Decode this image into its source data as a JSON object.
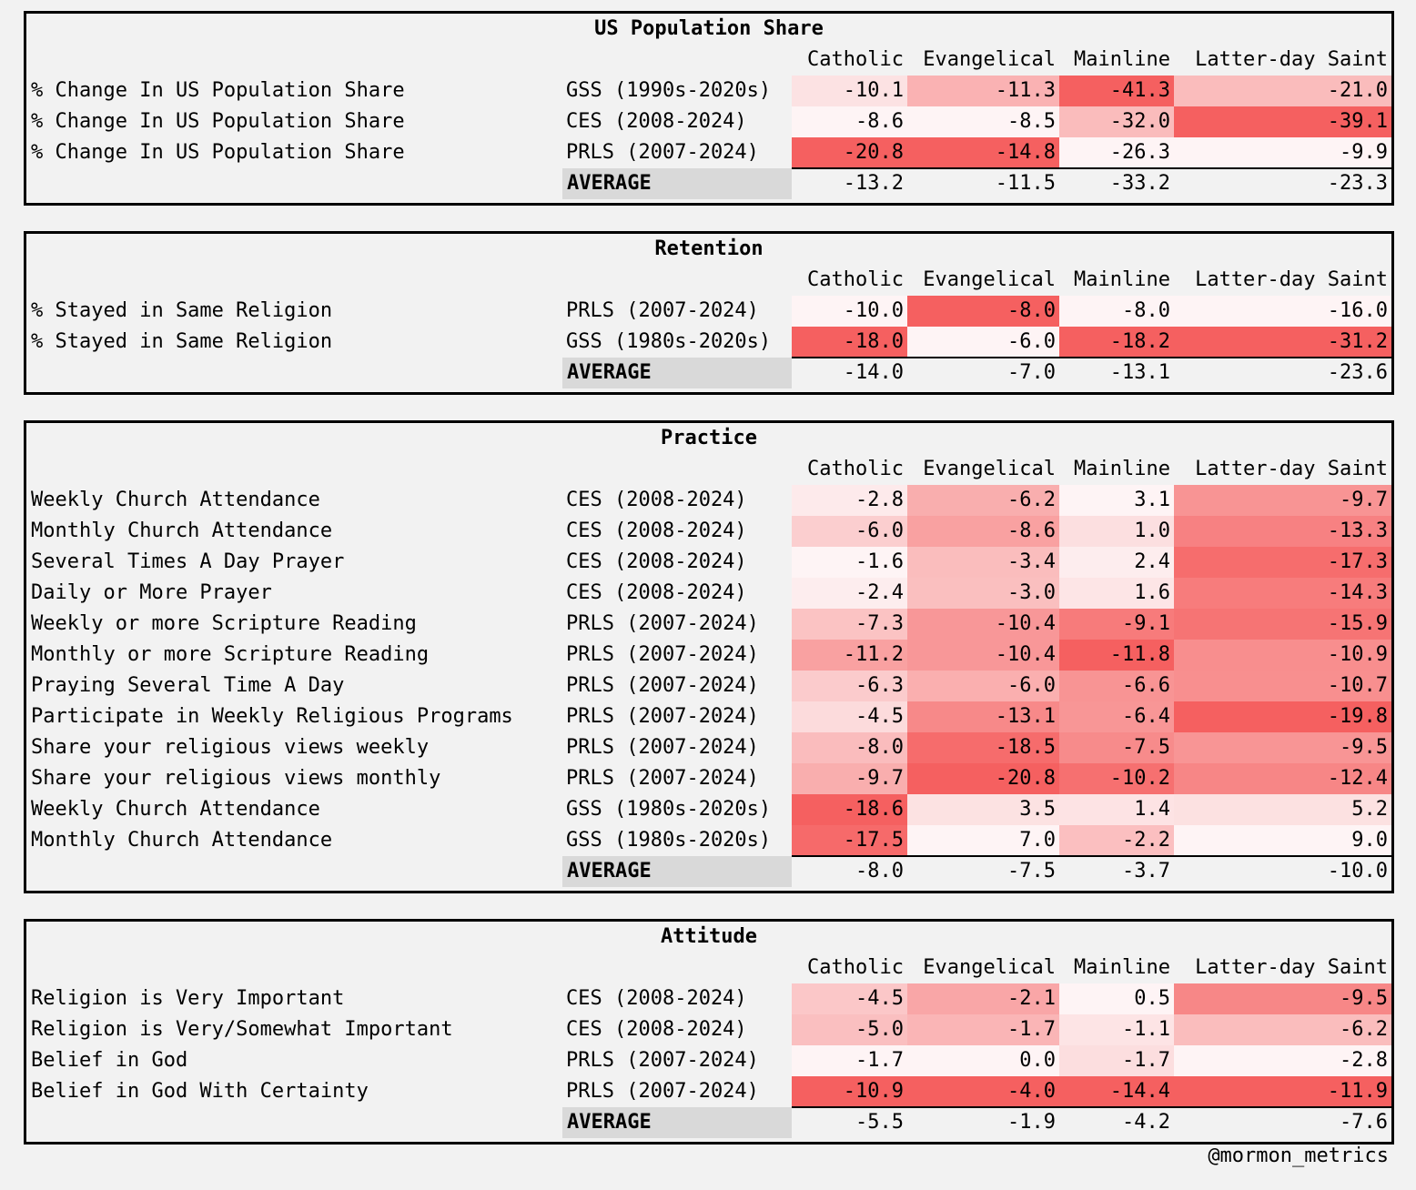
{
  "chart_data": [
    {
      "type": "table",
      "title": "US Population Share",
      "columns": [
        "Catholic",
        "Evangelical",
        "Mainline",
        "Latter-day Saint"
      ],
      "rows": [
        {
          "label": "% Change In US Population Share",
          "source": "GSS (1990s-2020s)",
          "values": [
            "-10.1",
            "-11.3",
            "-41.3",
            "-21.0"
          ]
        },
        {
          "label": "% Change In US Population Share",
          "source": "CES (2008-2024)",
          "values": [
            "-8.6",
            "-8.5",
            "-32.0",
            "-39.1"
          ]
        },
        {
          "label": "% Change In US Population Share",
          "source": "PRLS (2007-2024)",
          "values": [
            "-20.8",
            "-14.8",
            "-26.3",
            "-9.9"
          ]
        }
      ],
      "average": {
        "label": "AVERAGE",
        "values": [
          "-13.2",
          "-11.5",
          "-33.2",
          "-23.3"
        ]
      }
    },
    {
      "type": "table",
      "title": "Retention",
      "columns": [
        "Catholic",
        "Evangelical",
        "Mainline",
        "Latter-day Saint"
      ],
      "rows": [
        {
          "label": "% Stayed in Same Religion",
          "source": "PRLS (2007-2024)",
          "values": [
            "-10.0",
            "-8.0",
            "-8.0",
            "-16.0"
          ]
        },
        {
          "label": "% Stayed in Same Religion",
          "source": "GSS (1980s-2020s)",
          "values": [
            "-18.0",
            "-6.0",
            "-18.2",
            "-31.2"
          ]
        }
      ],
      "average": {
        "label": "AVERAGE",
        "values": [
          "-14.0",
          "-7.0",
          "-13.1",
          "-23.6"
        ]
      }
    },
    {
      "type": "table",
      "title": "Practice",
      "columns": [
        "Catholic",
        "Evangelical",
        "Mainline",
        "Latter-day Saint"
      ],
      "rows": [
        {
          "label": "Weekly Church Attendance",
          "source": "CES (2008-2024)",
          "values": [
            "-2.8",
            "-6.2",
            "3.1",
            "-9.7"
          ]
        },
        {
          "label": "Monthly Church Attendance",
          "source": "CES (2008-2024)",
          "values": [
            "-6.0",
            "-8.6",
            "1.0",
            "-13.3"
          ]
        },
        {
          "label": "Several Times A Day Prayer",
          "source": "CES (2008-2024)",
          "values": [
            "-1.6",
            "-3.4",
            "2.4",
            "-17.3"
          ]
        },
        {
          "label": "Daily or More Prayer",
          "source": "CES (2008-2024)",
          "values": [
            "-2.4",
            "-3.0",
            "1.6",
            "-14.3"
          ]
        },
        {
          "label": "Weekly or more Scripture Reading",
          "source": "PRLS (2007-2024)",
          "values": [
            "-7.3",
            "-10.4",
            "-9.1",
            "-15.9"
          ]
        },
        {
          "label": "Monthly or more Scripture Reading",
          "source": "PRLS (2007-2024)",
          "values": [
            "-11.2",
            "-10.4",
            "-11.8",
            "-10.9"
          ]
        },
        {
          "label": "Praying Several Time A Day",
          "source": "PRLS (2007-2024)",
          "values": [
            "-6.3",
            "-6.0",
            "-6.6",
            "-10.7"
          ]
        },
        {
          "label": "Participate in Weekly Religious Programs",
          "source": "PRLS (2007-2024)",
          "values": [
            "-4.5",
            "-13.1",
            "-6.4",
            "-19.8"
          ]
        },
        {
          "label": "Share your religious views weekly",
          "source": "PRLS (2007-2024)",
          "values": [
            "-8.0",
            "-18.5",
            "-7.5",
            "-9.5"
          ]
        },
        {
          "label": "Share your religious views monthly",
          "source": "PRLS (2007-2024)",
          "values": [
            "-9.7",
            "-20.8",
            "-10.2",
            "-12.4"
          ]
        },
        {
          "label": "Weekly Church Attendance",
          "source": "GSS (1980s-2020s)",
          "values": [
            "-18.6",
            "3.5",
            "1.4",
            "5.2"
          ]
        },
        {
          "label": "Monthly Church Attendance",
          "source": "GSS (1980s-2020s)",
          "values": [
            "-17.5",
            "7.0",
            "-2.2",
            "9.0"
          ]
        }
      ],
      "average": {
        "label": "AVERAGE",
        "values": [
          "-8.0",
          "-7.5",
          "-3.7",
          "-10.0"
        ]
      }
    },
    {
      "type": "table",
      "title": "Attitude",
      "columns": [
        "Catholic",
        "Evangelical",
        "Mainline",
        "Latter-day Saint"
      ],
      "rows": [
        {
          "label": "Religion is Very Important",
          "source": "CES (2008-2024)",
          "values": [
            "-4.5",
            "-2.1",
            "0.5",
            "-9.5"
          ]
        },
        {
          "label": "Religion is Very/Somewhat Important",
          "source": "CES (2008-2024)",
          "values": [
            "-5.0",
            "-1.7",
            "-1.1",
            "-6.2"
          ]
        },
        {
          "label": "Belief in God",
          "source": "PRLS (2007-2024)",
          "values": [
            "-1.7",
            "0.0",
            "-1.7",
            "-2.8"
          ]
        },
        {
          "label": "Belief in God With Certainty",
          "source": "PRLS (2007-2024)",
          "values": [
            "-10.9",
            "-4.0",
            "-14.4",
            "-11.9"
          ]
        }
      ],
      "average": {
        "label": "AVERAGE",
        "values": [
          "-5.5",
          "-1.9",
          "-4.2",
          "-7.6"
        ]
      }
    }
  ],
  "credit": "@mormon_metrics",
  "colors": {
    "low": "#fefcfd",
    "high": "#f56060",
    "average_bg": "#d9d9d9"
  }
}
